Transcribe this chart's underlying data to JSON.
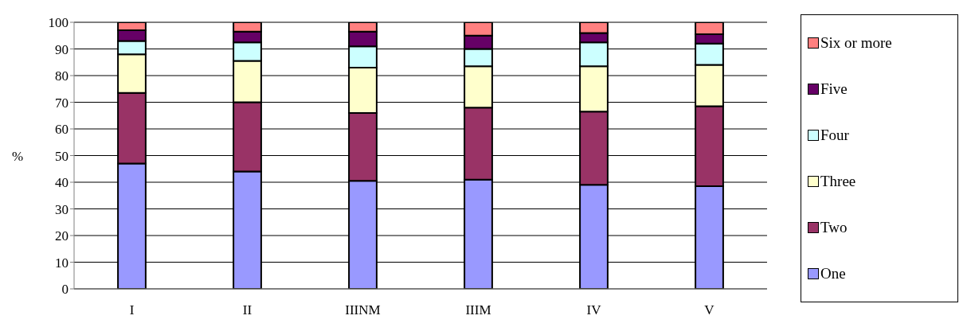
{
  "chart_data": {
    "type": "bar",
    "stacked": true,
    "ylabel": "%",
    "categories": [
      "I",
      "II",
      "IIINM",
      "IIIM",
      "IV",
      "V"
    ],
    "series": [
      {
        "name": "One",
        "color": "#9999ff",
        "values": [
          47,
          44,
          40.5,
          41,
          39,
          38.5
        ]
      },
      {
        "name": "Two",
        "color": "#993366",
        "values": [
          26.5,
          26,
          25.5,
          27,
          27.5,
          30
        ]
      },
      {
        "name": "Three",
        "color": "#ffffcc",
        "values": [
          14.5,
          15.5,
          17,
          15.5,
          17,
          15.5
        ]
      },
      {
        "name": "Four",
        "color": "#ccffff",
        "values": [
          5,
          7,
          8,
          6.5,
          9,
          8
        ]
      },
      {
        "name": "Five",
        "color": "#660066",
        "values": [
          4,
          4,
          5.5,
          5,
          3.5,
          3.5
        ]
      },
      {
        "name": "Six or more",
        "color": "#ff8080",
        "values": [
          3,
          3.5,
          3.5,
          5,
          4,
          4.5
        ]
      }
    ],
    "ylim": [
      0,
      100
    ],
    "yticks": [
      0,
      10,
      20,
      30,
      40,
      50,
      60,
      70,
      80,
      90,
      100
    ],
    "grid": "y",
    "legend": "right"
  }
}
